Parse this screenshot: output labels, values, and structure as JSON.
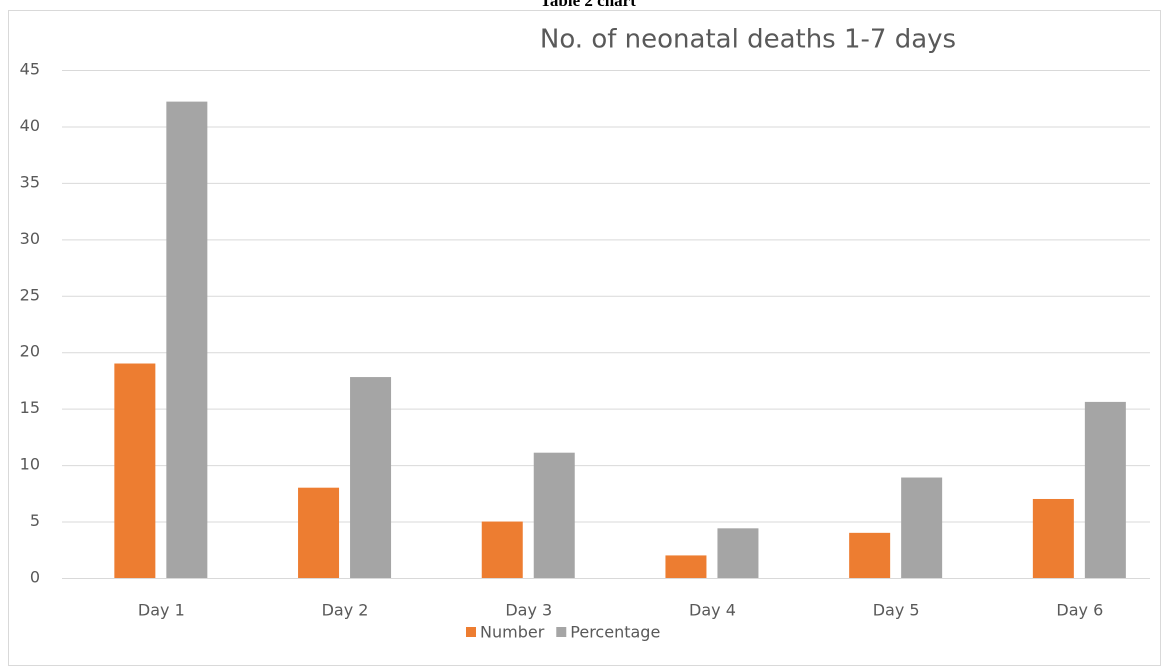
{
  "heading": "Table 2 chart",
  "chart_data": {
    "type": "bar",
    "title": "No. of neonatal deaths 1-7 days",
    "categories": [
      "Day 1",
      "Day 2",
      "Day 3",
      "Day 4",
      "Day 5",
      "Day 6"
    ],
    "series": [
      {
        "name": "Number",
        "color": "#ed7d31",
        "values": [
          19,
          8,
          5,
          2,
          4,
          7
        ]
      },
      {
        "name": "Percentage",
        "color": "#a5a5a5",
        "values": [
          42.2,
          17.8,
          11.1,
          4.4,
          8.9,
          15.6
        ]
      }
    ],
    "ylim": [
      0,
      45
    ],
    "yticks": [
      0,
      5,
      10,
      15,
      20,
      25,
      30,
      35,
      40,
      45
    ],
    "grid": true,
    "legend": "bottom"
  }
}
